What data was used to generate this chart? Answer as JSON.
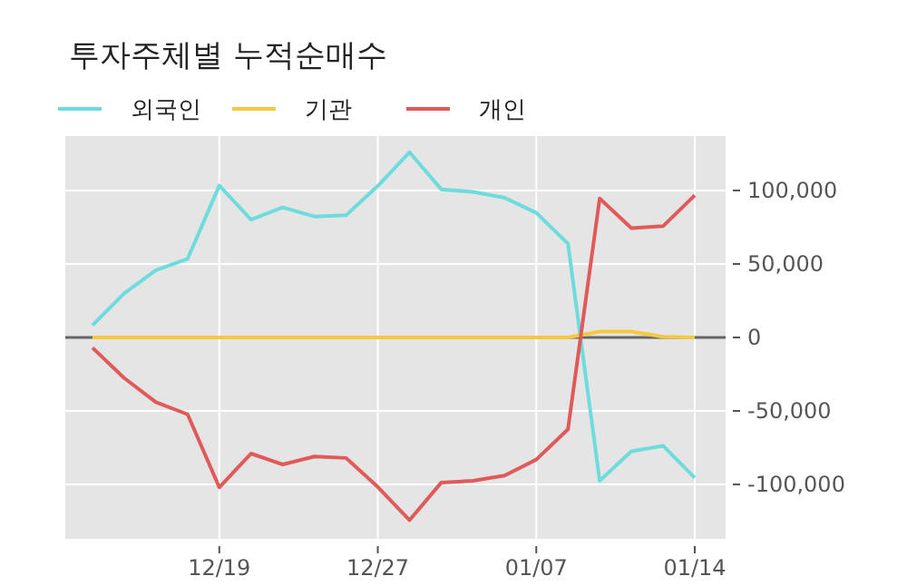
{
  "chart_data": {
    "type": "line",
    "title": "투자주체별 누적순매수",
    "categories": [
      null,
      null,
      null,
      null,
      "12/19",
      null,
      null,
      null,
      null,
      "12/27",
      null,
      null,
      null,
      null,
      "01/07",
      null,
      null,
      null,
      null,
      "01/14"
    ],
    "series": [
      {
        "name": "외국인",
        "color": "#6edcdc",
        "values": [
          8300,
          30000,
          45700,
          53500,
          103300,
          80200,
          88500,
          82300,
          83100,
          103000,
          126000,
          100800,
          99000,
          95000,
          84800,
          63800,
          -97500,
          -77400,
          -73700,
          -95500
        ]
      },
      {
        "name": "기관",
        "color": "#f5c842",
        "values": [
          0,
          0,
          0,
          0,
          0,
          0,
          0,
          0,
          0,
          0,
          0,
          0,
          0,
          0,
          0,
          0,
          4000,
          4000,
          500,
          0
        ]
      },
      {
        "name": "개인",
        "color": "#e05a5a",
        "values": [
          -7000,
          -27600,
          -44000,
          -52300,
          -102000,
          -79000,
          -86400,
          -81000,
          -82000,
          -101700,
          -124300,
          -98800,
          -97500,
          -94000,
          -83100,
          -62500,
          94600,
          74400,
          75700,
          96700
        ]
      }
    ],
    "ylim": [
      -137000,
      137000
    ],
    "yticks": [
      {
        "value": -100000,
        "label": "-100,000"
      },
      {
        "value": -50000,
        "label": "-50,000"
      },
      0,
      {
        "value": 50000,
        "label": "50,000"
      },
      {
        "value": 100000,
        "label": "100,000"
      }
    ],
    "ref_lines": [
      {
        "axis": "y",
        "value": 0,
        "color": "#666666"
      }
    ],
    "grid": true,
    "legend": "top left",
    "marker": "none",
    "line_style": "solid"
  }
}
